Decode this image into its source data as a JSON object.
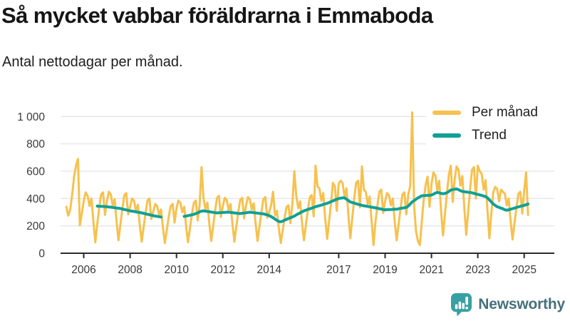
{
  "header": {
    "title": "Så mycket vabbar föräldrarna i Emmaboda",
    "subtitle": "Antal nettodagar per månad."
  },
  "legend": [
    {
      "label": "Per månad",
      "color": "#F6C14E"
    },
    {
      "label": "Trend",
      "color": "#0FA096"
    }
  ],
  "footer": {
    "brand": "Newsworthy"
  },
  "colors": {
    "per_month_line": "#F6C14E",
    "trend_line": "#0FA096",
    "grid_line": "#dcdcdc",
    "axis_line": "#2b2b2b",
    "brand_icon": "#36A1A3",
    "brand_text": "#46707B"
  },
  "chart_data": {
    "type": "line",
    "title": "Så mycket vabbar föräldrarna i Emmaboda",
    "subtitle": "Antal nettodagar per månad.",
    "xlabel": "",
    "ylabel": "",
    "grid": true,
    "legend_position": "top-right",
    "xlim": [
      2005.0,
      2026.3
    ],
    "ylim": [
      0,
      1080
    ],
    "x_ticks": [
      2006,
      2008,
      2010,
      2012,
      2014,
      2017,
      2019,
      2021,
      2023,
      2025
    ],
    "x_tick_labels": [
      "2006",
      "2008",
      "2010",
      "2012",
      "2014",
      "2017",
      "2019",
      "2021",
      "2023",
      "2025"
    ],
    "y_ticks": [
      0,
      200,
      400,
      600,
      800,
      1000
    ],
    "y_tick_labels": [
      "0",
      "200",
      "400",
      "600",
      "800",
      "1 000"
    ],
    "x_start": 2005.25,
    "x_step": 0.0833333,
    "x_unit": "decimal_year_monthly",
    "series": [
      {
        "name": "Per månad",
        "color": "#F6C14E",
        "width": 3,
        "values": [
          340,
          275,
          320,
          430,
          560,
          640,
          690,
          205,
          290,
          380,
          445,
          420,
          345,
          400,
          230,
          80,
          215,
          330,
          430,
          445,
          280,
          380,
          450,
          430,
          350,
          395,
          230,
          95,
          210,
          325,
          425,
          440,
          285,
          340,
          400,
          385,
          310,
          355,
          205,
          85,
          190,
          295,
          385,
          400,
          250,
          305,
          360,
          345,
          280,
          320,
          185,
          75,
          170,
          265,
          345,
          360,
          225,
          330,
          385,
          370,
          300,
          340,
          200,
          80,
          185,
          285,
          370,
          385,
          240,
          355,
          630,
          405,
          325,
          370,
          215,
          90,
          200,
          310,
          405,
          420,
          265,
          345,
          405,
          390,
          315,
          360,
          210,
          85,
          195,
          300,
          390,
          405,
          255,
          350,
          410,
          395,
          320,
          365,
          215,
          90,
          200,
          305,
          395,
          410,
          260,
          300,
          350,
          450,
          275,
          310,
          180,
          75,
          170,
          260,
          340,
          350,
          220,
          365,
          600,
          420,
          330,
          380,
          220,
          95,
          205,
          315,
          410,
          425,
          270,
          640,
          490,
          475,
          385,
          440,
          255,
          105,
          235,
          365,
          515,
          490,
          310,
          510,
          530,
          515,
          415,
          475,
          275,
          110,
          255,
          395,
          515,
          530,
          335,
          635,
          465,
          450,
          360,
          415,
          240,
          60,
          225,
          345,
          450,
          465,
          295,
          380,
          440,
          425,
          350,
          400,
          230,
          95,
          215,
          330,
          430,
          445,
          285,
          430,
          490,
          1030,
          350,
          160,
          90,
          60,
          230,
          390,
          500,
          560,
          340,
          505,
          590,
          570,
          460,
          530,
          305,
          130,
          285,
          440,
          575,
          640,
          375,
          540,
          635,
          610,
          495,
          565,
          330,
          135,
          305,
          470,
          610,
          630,
          400,
          640,
          600,
          580,
          465,
          535,
          310,
          110,
          290,
          445,
          485,
          470,
          380,
          465,
          450,
          435,
          350,
          400,
          235,
          100,
          220,
          335,
          435,
          450,
          290,
          460,
          590,
          280
        ]
      },
      {
        "name": "Trend",
        "color": "#0FA096",
        "width": 4,
        "values": [
          null,
          null,
          null,
          null,
          null,
          null,
          null,
          null,
          null,
          null,
          null,
          null,
          null,
          null,
          null,
          null,
          345,
          344,
          343,
          342,
          341,
          340,
          338,
          337,
          335,
          333,
          331,
          330,
          327,
          323,
          320,
          317,
          313,
          310,
          308,
          305,
          303,
          300,
          298,
          295,
          292,
          288,
          285,
          282,
          278,
          275,
          272,
          270,
          267,
          265,
          null,
          null,
          null,
          null,
          null,
          null,
          null,
          null,
          null,
          null,
          null,
          270,
          272,
          275,
          278,
          281,
          285,
          290,
          295,
          303,
          308,
          310,
          308,
          306,
          304,
          301,
          299,
          297,
          295,
          296,
          297,
          298,
          299,
          300,
          300,
          299,
          297,
          295,
          293,
          291,
          290,
          292,
          294,
          296,
          298,
          300,
          299,
          297,
          295,
          293,
          291,
          290,
          288,
          284,
          280,
          275,
          268,
          260,
          250,
          240,
          232,
          230,
          235,
          242,
          248,
          254,
          260,
          265,
          272,
          280,
          288,
          295,
          303,
          310,
          315,
          320,
          325,
          330,
          335,
          340,
          344,
          348,
          352,
          357,
          361,
          365,
          371,
          377,
          383,
          389,
          395,
          400,
          403,
          405,
          405,
          395,
          385,
          375,
          371,
          367,
          362,
          358,
          354,
          350,
          347,
          345,
          342,
          340,
          337,
          335,
          332,
          329,
          326,
          323,
          320,
          318,
          319,
          320,
          320,
          321,
          322,
          322,
          325,
          328,
          330,
          333,
          335,
          345,
          360,
          375,
          385,
          395,
          405,
          412,
          420,
          421,
          422,
          423,
          424,
          425,
          432,
          440,
          445,
          442,
          438,
          435,
          437,
          443,
          452,
          462,
          466,
          468,
          470,
          465,
          458,
          452,
          450,
          448,
          446,
          445,
          442,
          438,
          434,
          430,
          427,
          423,
          418,
          415,
          405,
          390,
          375,
          360,
          350,
          340,
          335,
          330,
          325,
          318,
          315,
          318,
          322,
          326,
          330,
          335,
          339,
          343,
          347,
          350,
          355,
          360
        ]
      }
    ]
  }
}
